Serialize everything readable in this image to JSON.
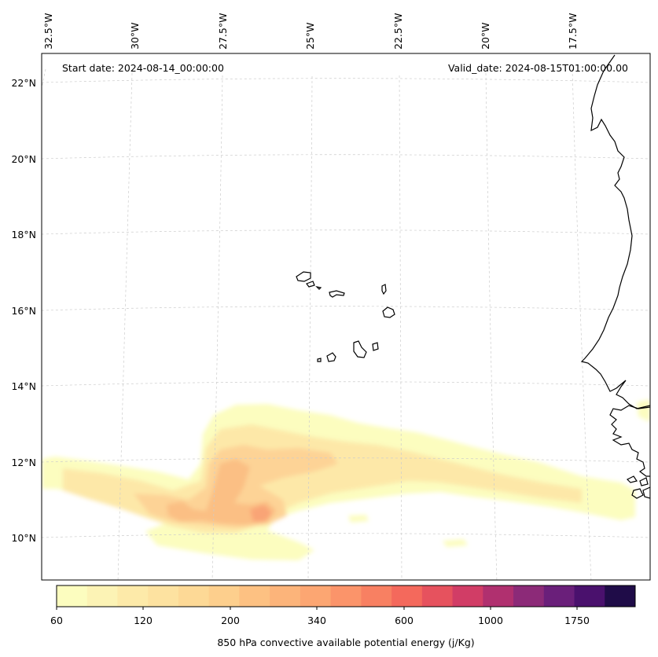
{
  "map": {
    "start_date": "Start date: 2024-08-14_00:00:00",
    "valid_date": "Valid_date: 2024-08-15T01:00:00.00",
    "lon_labels": [
      "32.5°W",
      "30°W",
      "27.5°W",
      "25°W",
      "22.5°W",
      "20°W",
      "17.5°W"
    ],
    "lat_labels": [
      "22°N",
      "20°N",
      "18°N",
      "16°N",
      "14°N",
      "12°N",
      "10°N"
    ],
    "field_colors": {
      "c60": "#fcfdbf",
      "c100": "#fde8a8",
      "c200": "#fdd396",
      "c280": "#fbbf84",
      "c340": "#f9a476"
    }
  },
  "colorbar": {
    "label": "850 hPa convective available potential energy (j/Kg)",
    "tick_labels": [
      "60",
      "120",
      "200",
      "340",
      "600",
      "1000",
      "1750"
    ],
    "colors": [
      "#fcfdbf",
      "#fcf3b5",
      "#fdeaa9",
      "#fde2a0",
      "#fdd996",
      "#fdcf8d",
      "#fdc182",
      "#fcb47a",
      "#fca672",
      "#fb946a",
      "#f88062",
      "#f4695c",
      "#e6525e",
      "#d13d66",
      "#b0306f",
      "#8c2a78",
      "#6a1f7a",
      "#4a116d",
      "#1f0c48"
    ]
  }
}
